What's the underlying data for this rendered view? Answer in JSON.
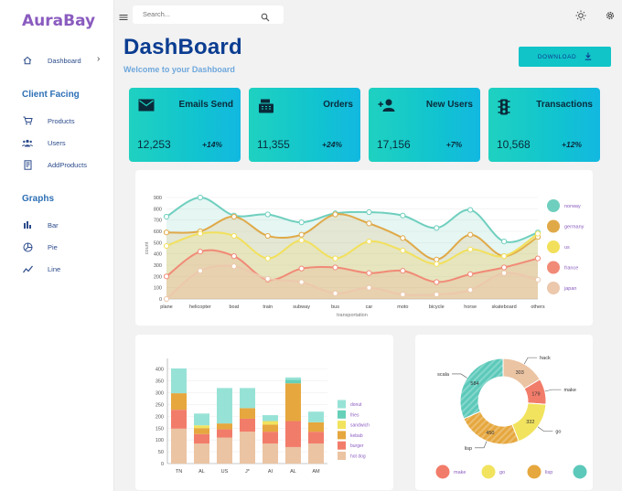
{
  "app": {
    "name": "AuraBay"
  },
  "sidebar": {
    "dashboard_label": "Dashboard",
    "sections": [
      {
        "heading": "Client Facing",
        "items": [
          {
            "label": "Products",
            "icon": "cart-icon"
          },
          {
            "label": "Users",
            "icon": "users-icon"
          },
          {
            "label": "AddProducts",
            "icon": "receipt-icon"
          }
        ]
      },
      {
        "heading": "Graphs",
        "items": [
          {
            "label": "Bar",
            "icon": "bar-chart-icon"
          },
          {
            "label": "Pie",
            "icon": "pie-chart-icon"
          },
          {
            "label": "Line",
            "icon": "line-chart-icon"
          }
        ]
      }
    ]
  },
  "topbar": {
    "search_placeholder": "Search..."
  },
  "header": {
    "title": "DashBoard",
    "subtitle": "Welcome to your Dashboard",
    "download_label": "DOWNLOAD"
  },
  "stats": [
    {
      "label": "Emails Send",
      "value": "12,253",
      "change": "+14%",
      "icon": "email-icon"
    },
    {
      "label": "Orders",
      "value": "11,355",
      "change": "+24%",
      "icon": "cash-register-icon"
    },
    {
      "label": "New Users",
      "value": "17,156",
      "change": "+7%",
      "icon": "add-user-icon"
    },
    {
      "label": "Transactions",
      "value": "10,568",
      "change": "+12%",
      "icon": "traffic-light-icon"
    }
  ],
  "colors": {
    "accent": "#11c4c8",
    "brand": "#8a5bbf",
    "title": "#0b3d91"
  },
  "chart_data": [
    {
      "type": "area",
      "categories": [
        "plane",
        "helicopter",
        "boat",
        "train",
        "subway",
        "bus",
        "car",
        "moto",
        "bicycle",
        "horse",
        "skateboard",
        "others"
      ],
      "xlabel": "transportation",
      "ylabel": "count",
      "ylim": [
        0,
        900
      ],
      "yticks": [
        0,
        100,
        200,
        300,
        400,
        500,
        600,
        700,
        800,
        900
      ],
      "legend_position": "right",
      "series": [
        {
          "name": "norway",
          "color": "#6fcfbe",
          "values": [
            730,
            900,
            740,
            750,
            680,
            760,
            770,
            740,
            630,
            790,
            510,
            590
          ]
        },
        {
          "name": "germany",
          "color": "#e0a948",
          "values": [
            590,
            600,
            730,
            560,
            570,
            750,
            670,
            540,
            350,
            570,
            380,
            550
          ]
        },
        {
          "name": "us",
          "color": "#f2e05c",
          "values": [
            470,
            580,
            560,
            360,
            520,
            360,
            510,
            430,
            310,
            440,
            380,
            580
          ]
        },
        {
          "name": "france",
          "color": "#f18a77",
          "values": [
            200,
            420,
            380,
            170,
            270,
            280,
            230,
            250,
            150,
            220,
            280,
            360
          ]
        },
        {
          "name": "japan",
          "color": "#ecc8ac",
          "values": [
            0,
            250,
            290,
            180,
            150,
            50,
            100,
            40,
            40,
            80,
            230,
            170
          ]
        }
      ]
    },
    {
      "type": "bar",
      "stacked": true,
      "categories": [
        "TN",
        "AL",
        "US",
        "J*",
        "AI",
        "AL",
        "AM"
      ],
      "ylim": [
        0,
        430
      ],
      "yticks": [
        0,
        50,
        100,
        150,
        200,
        250,
        300,
        350,
        400
      ],
      "legend_position": "right",
      "series": [
        {
          "name": "hot dog",
          "color": "#ebc4a3",
          "values": [
            148,
            85,
            110,
            135,
            85,
            70,
            85
          ]
        },
        {
          "name": "burger",
          "color": "#f27c6a",
          "values": [
            80,
            40,
            35,
            55,
            50,
            110,
            50
          ]
        },
        {
          "name": "kebab",
          "color": "#e6a73e",
          "values": [
            70,
            25,
            25,
            45,
            30,
            160,
            40
          ]
        },
        {
          "name": "sandwich",
          "color": "#f1e35e",
          "values": [
            0,
            12,
            0,
            0,
            15,
            0,
            0
          ]
        },
        {
          "name": "fries",
          "color": "#66d0b8",
          "values": [
            0,
            0,
            0,
            0,
            0,
            15,
            0
          ]
        },
        {
          "name": "donut",
          "color": "#97e2d6",
          "values": [
            105,
            50,
            150,
            85,
            25,
            10,
            45
          ]
        }
      ]
    },
    {
      "type": "pie",
      "slices": [
        {
          "label": "hack",
          "value": 303,
          "color": "#ebc4a3",
          "show_value": true
        },
        {
          "label": "make",
          "value": 179,
          "color": "#f27c6a",
          "show_value": true
        },
        {
          "label": "go",
          "value": 332,
          "color": "#f1e35e",
          "show_value": true
        },
        {
          "label": "lisp",
          "value": 450,
          "color": "#e6a73e",
          "show_value": true
        },
        {
          "label": "scala",
          "value": 584,
          "color": "#5cc9ba",
          "show_value": true
        }
      ],
      "legend": [
        "make",
        "go",
        "lisp",
        ""
      ]
    }
  ]
}
